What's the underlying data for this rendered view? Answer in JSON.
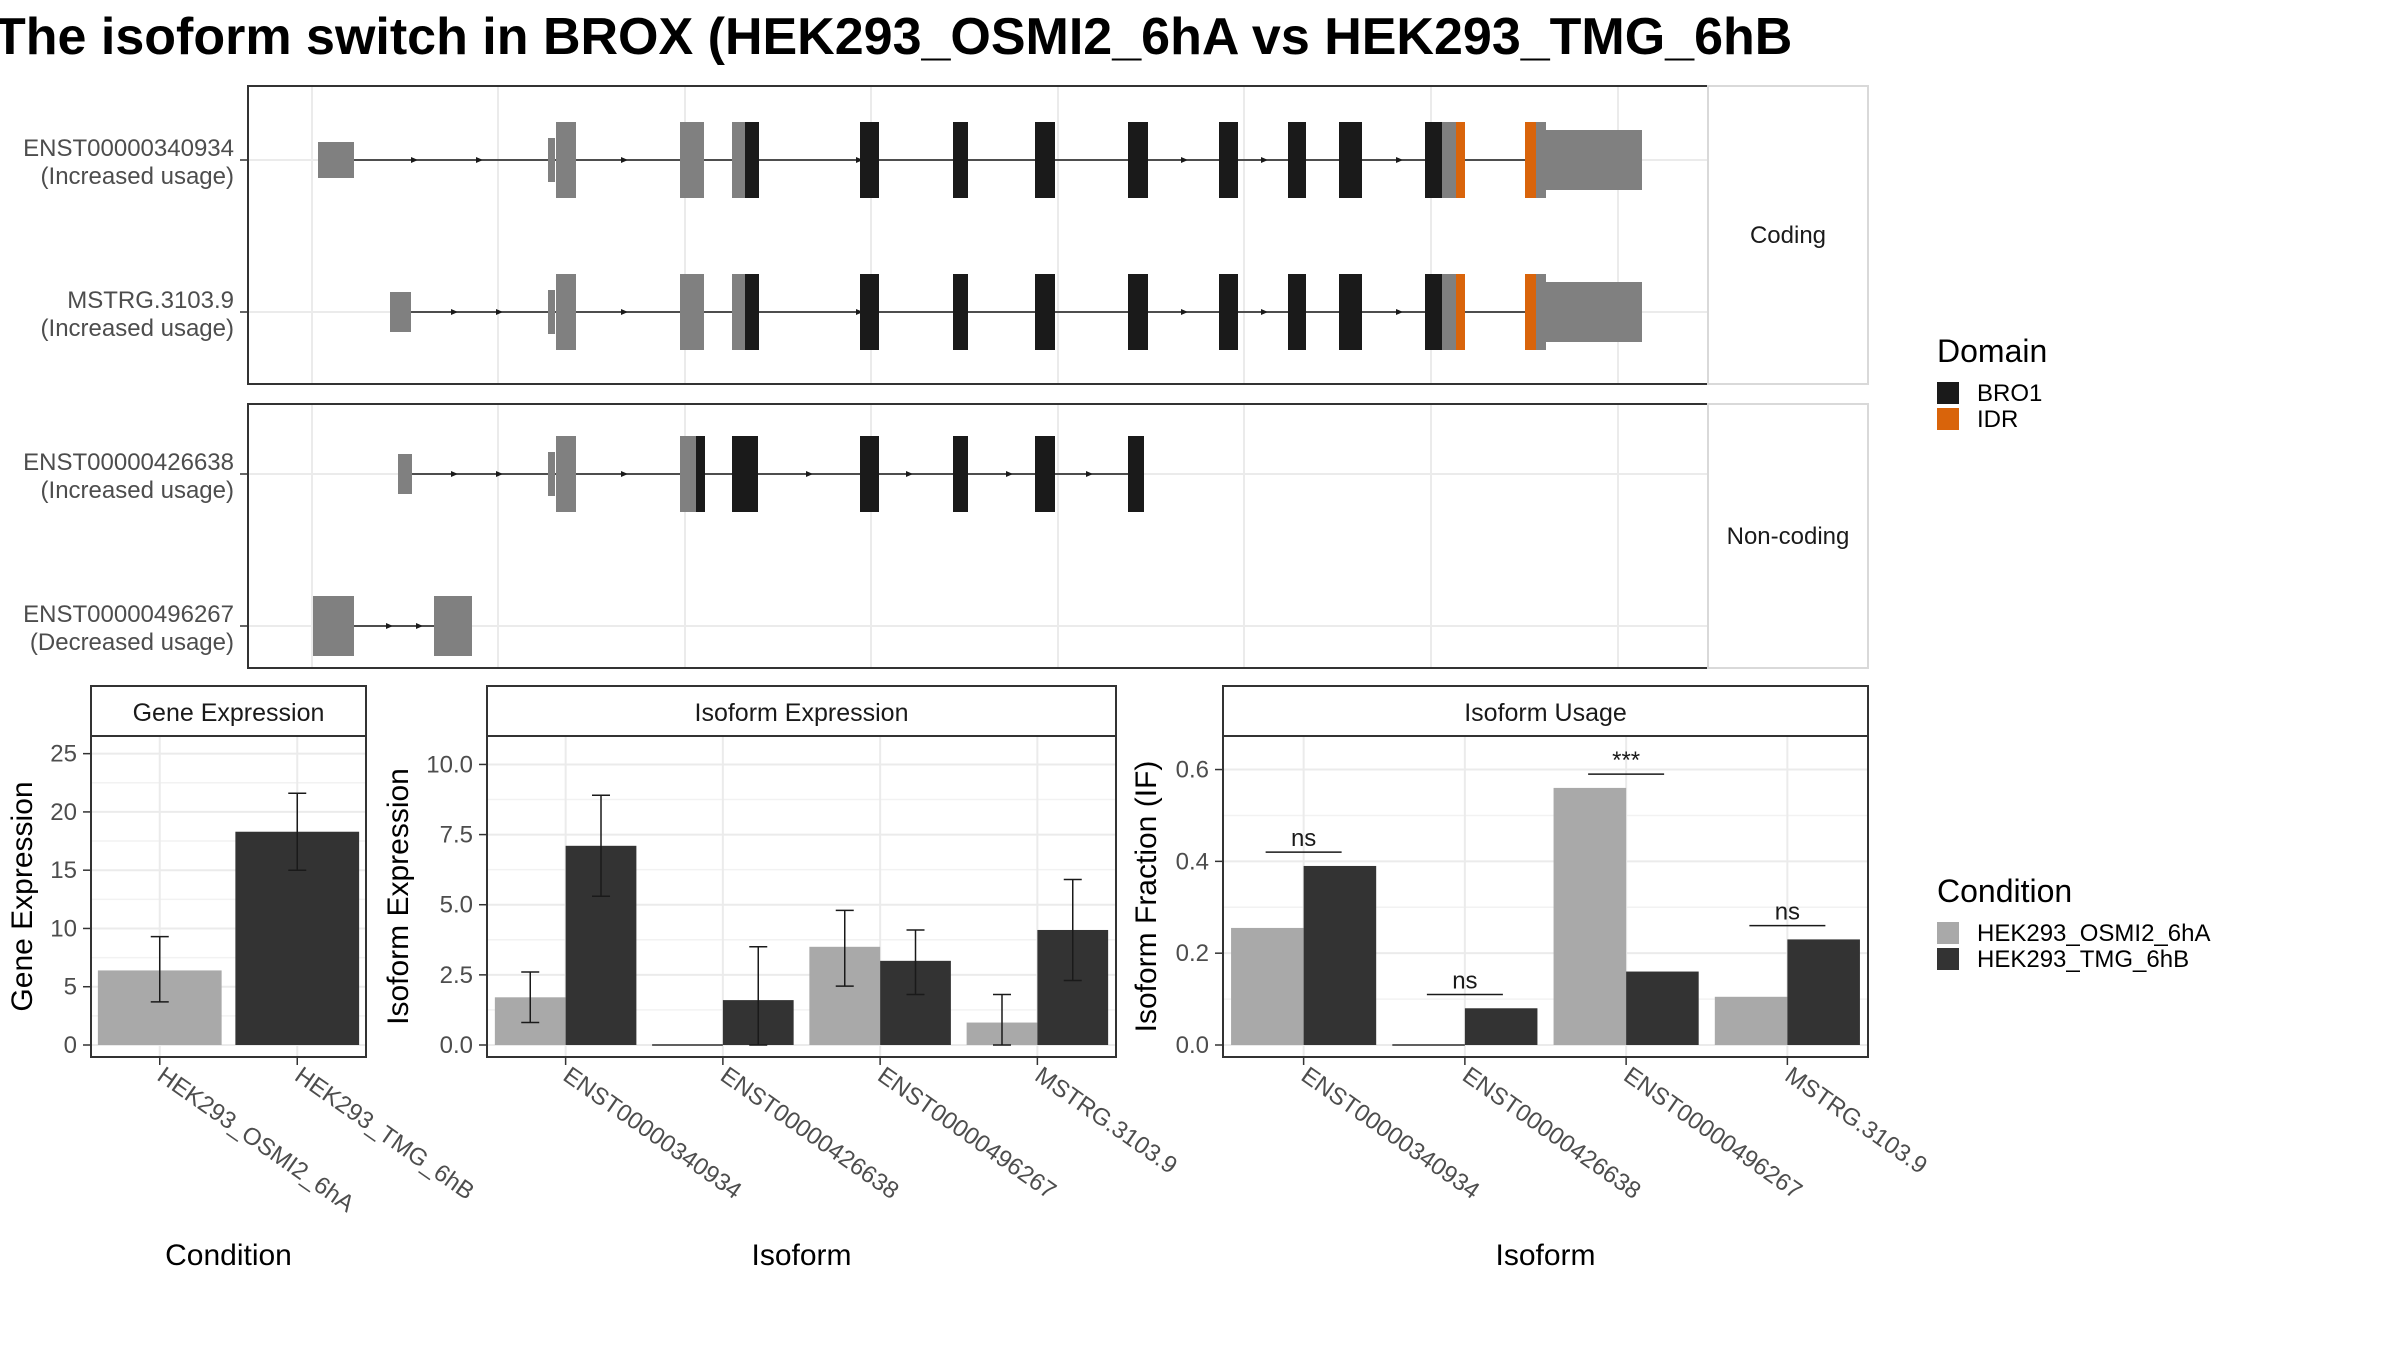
{
  "title": "The isoform switch in BROX (HEK293_OSMI2_6hA vs HEK293_TMG_6hB",
  "colors": {
    "utr": "#808080",
    "bro1": "#1a1a1a",
    "idr": "#d9640b",
    "cond_a": "#a9a9a9",
    "cond_b": "#333333",
    "grid": "#ebebeb",
    "strip_bg": "#ffffff",
    "panel_border": "#333333"
  },
  "structure": {
    "facets": [
      {
        "label": "Coding",
        "transcripts": [
          0,
          1
        ]
      },
      {
        "label": "Non-coding",
        "transcripts": [
          2,
          3
        ]
      }
    ],
    "transcripts": [
      {
        "name": "ENST00000340934",
        "usage": "(Increased usage)"
      },
      {
        "name": "MSTRG.3103.9",
        "usage": "(Increased usage)"
      },
      {
        "name": "ENST00000426638",
        "usage": "(Increased usage)"
      },
      {
        "name": "ENST00000496267",
        "usage": "(Decreased usage)"
      }
    ]
  },
  "legends": {
    "domain": {
      "title": "Domain",
      "items": [
        {
          "label": "BRO1",
          "color": "#1a1a1a"
        },
        {
          "label": "IDR",
          "color": "#d9640b"
        }
      ]
    },
    "condition": {
      "title": "Condition",
      "items": [
        {
          "label": "HEK293_OSMI2_6hA",
          "color": "#a9a9a9"
        },
        {
          "label": "HEK293_TMG_6hB",
          "color": "#333333"
        }
      ]
    }
  },
  "chart_data": [
    {
      "type": "bar",
      "title": "Gene Expression",
      "xlabel": "Condition",
      "ylabel": "Gene Expression",
      "ylim": [
        0,
        26
      ],
      "yticks": [
        "0",
        "5",
        "10",
        "15",
        "20",
        "25"
      ],
      "categories": [
        "HEK293_OSMI2_6hA",
        "HEK293_TMG_6hB"
      ],
      "values": [
        6.4,
        18.3
      ],
      "error_low": [
        3.7,
        15.0
      ],
      "error_high": [
        9.3,
        21.6
      ]
    },
    {
      "type": "bar",
      "title": "Isoform Expression",
      "xlabel": "Isoform",
      "ylabel": "Isoform Expression",
      "ylim": [
        0,
        10.8
      ],
      "yticks": [
        "0.0",
        "2.5",
        "5.0",
        "7.5",
        "10.0"
      ],
      "categories": [
        "ENST00000340934",
        "ENST00000426638",
        "ENST00000496267",
        "MSTRG.3103.9"
      ],
      "series": [
        {
          "name": "HEK293_OSMI2_6hA",
          "values": [
            1.7,
            0.0,
            3.5,
            0.8
          ],
          "error_low": [
            0.8,
            0.0,
            2.1,
            0.0
          ],
          "error_high": [
            2.6,
            0.0,
            4.8,
            1.8
          ]
        },
        {
          "name": "HEK293_TMG_6hB",
          "values": [
            7.1,
            1.6,
            3.0,
            4.1
          ],
          "error_low": [
            5.3,
            0.0,
            1.8,
            2.3
          ],
          "error_high": [
            8.9,
            3.5,
            4.1,
            5.9
          ]
        }
      ]
    },
    {
      "type": "bar",
      "title": "Isoform Usage",
      "xlabel": "Isoform",
      "ylabel": "Isoform Fraction (IF)",
      "ylim": [
        0,
        0.66
      ],
      "yticks": [
        "0.0",
        "0.2",
        "0.4",
        "0.6"
      ],
      "categories": [
        "ENST00000340934",
        "ENST00000426638",
        "ENST00000496267",
        "MSTRG.3103.9"
      ],
      "series": [
        {
          "name": "HEK293_OSMI2_6hA",
          "values": [
            0.255,
            0.0,
            0.56,
            0.105
          ]
        },
        {
          "name": "HEK293_TMG_6hB",
          "values": [
            0.39,
            0.08,
            0.16,
            0.23
          ]
        }
      ],
      "significance": [
        "ns",
        "ns",
        "***",
        "ns"
      ],
      "significance_level": [
        0.42,
        0.11,
        0.59,
        0.26
      ]
    }
  ]
}
